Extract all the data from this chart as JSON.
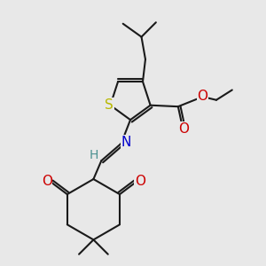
{
  "bg_color": "#e8e8e8",
  "bond_color": "#1a1a1a",
  "S_color": "#b8b800",
  "N_color": "#0000cc",
  "O_color": "#cc0000",
  "H_color": "#4a9090",
  "line_width": 1.5,
  "figsize": [
    3.0,
    3.0
  ],
  "dpi": 100,
  "xlim": [
    0,
    10
  ],
  "ylim": [
    0,
    10
  ]
}
